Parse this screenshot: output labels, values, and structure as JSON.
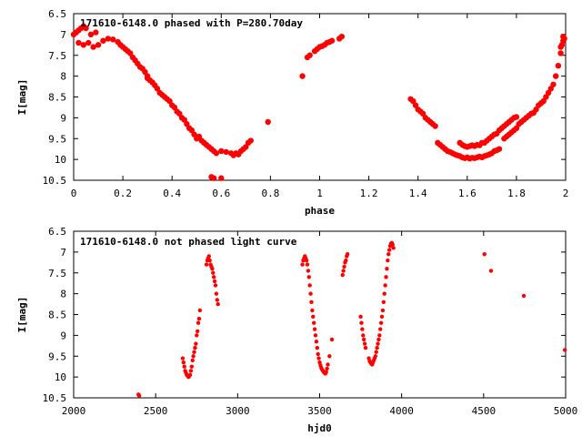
{
  "chart_data": [
    {
      "type": "scatter",
      "title": "171610-6148.0 phased with P=280.70day",
      "xlabel": "phase",
      "ylabel": "I[mag]",
      "xlim": [
        0,
        2
      ],
      "ylim": [
        6.5,
        10.5
      ],
      "y_inverted": true,
      "grid": false,
      "xticks": [
        "0",
        "0.2",
        "0.4",
        "0.6",
        "0.8",
        "1",
        "1.2",
        "1.4",
        "1.6",
        "1.8",
        "2"
      ],
      "yticks": [
        "6.5",
        "7",
        "7.5",
        "8",
        "8.5",
        "9",
        "9.5",
        "10",
        "10.5"
      ],
      "marker_color": "#ff0000",
      "points": [
        [
          0.0,
          7.0
        ],
        [
          0.01,
          6.95
        ],
        [
          0.02,
          6.9
        ],
        [
          0.03,
          6.85
        ],
        [
          0.04,
          6.8
        ],
        [
          0.05,
          6.85
        ],
        [
          0.02,
          7.2
        ],
        [
          0.04,
          7.25
        ],
        [
          0.06,
          7.2
        ],
        [
          0.08,
          7.3
        ],
        [
          0.07,
          7.0
        ],
        [
          0.09,
          6.95
        ],
        [
          0.1,
          7.25
        ],
        [
          0.12,
          7.15
        ],
        [
          0.14,
          7.1
        ],
        [
          0.16,
          7.12
        ],
        [
          0.18,
          7.18
        ],
        [
          0.19,
          7.25
        ],
        [
          0.2,
          7.3
        ],
        [
          0.21,
          7.35
        ],
        [
          0.22,
          7.4
        ],
        [
          0.23,
          7.45
        ],
        [
          0.24,
          7.55
        ],
        [
          0.25,
          7.62
        ],
        [
          0.26,
          7.7
        ],
        [
          0.27,
          7.78
        ],
        [
          0.28,
          7.82
        ],
        [
          0.29,
          7.9
        ],
        [
          0.3,
          8.0
        ],
        [
          0.3,
          8.05
        ],
        [
          0.31,
          8.1
        ],
        [
          0.32,
          8.15
        ],
        [
          0.33,
          8.22
        ],
        [
          0.34,
          8.3
        ],
        [
          0.35,
          8.4
        ],
        [
          0.36,
          8.45
        ],
        [
          0.37,
          8.5
        ],
        [
          0.38,
          8.55
        ],
        [
          0.39,
          8.6
        ],
        [
          0.4,
          8.7
        ],
        [
          0.41,
          8.75
        ],
        [
          0.42,
          8.85
        ],
        [
          0.43,
          8.9
        ],
        [
          0.44,
          9.0
        ],
        [
          0.45,
          9.05
        ],
        [
          0.46,
          9.15
        ],
        [
          0.47,
          9.25
        ],
        [
          0.48,
          9.3
        ],
        [
          0.49,
          9.4
        ],
        [
          0.5,
          9.5
        ],
        [
          0.51,
          9.45
        ],
        [
          0.52,
          9.55
        ],
        [
          0.53,
          9.6
        ],
        [
          0.54,
          9.65
        ],
        [
          0.55,
          9.7
        ],
        [
          0.56,
          9.75
        ],
        [
          0.57,
          9.8
        ],
        [
          0.58,
          9.85
        ],
        [
          0.56,
          10.42
        ],
        [
          0.57,
          10.45
        ],
        [
          0.6,
          10.45
        ],
        [
          0.6,
          9.8
        ],
        [
          0.62,
          9.82
        ],
        [
          0.64,
          9.85
        ],
        [
          0.65,
          9.9
        ],
        [
          0.66,
          9.85
        ],
        [
          0.67,
          9.88
        ],
        [
          0.68,
          9.8
        ],
        [
          0.69,
          9.75
        ],
        [
          0.7,
          9.7
        ],
        [
          0.71,
          9.6
        ],
        [
          0.72,
          9.55
        ],
        [
          0.79,
          9.1
        ],
        [
          0.93,
          8.0
        ],
        [
          0.95,
          7.55
        ],
        [
          0.96,
          7.5
        ],
        [
          0.98,
          7.4
        ],
        [
          0.99,
          7.35
        ],
        [
          1.0,
          7.3
        ],
        [
          1.01,
          7.28
        ],
        [
          1.02,
          7.25
        ],
        [
          1.03,
          7.2
        ],
        [
          1.04,
          7.18
        ],
        [
          1.05,
          7.15
        ],
        [
          1.08,
          7.1
        ],
        [
          1.09,
          7.05
        ],
        [
          1.37,
          8.55
        ],
        [
          1.38,
          8.6
        ],
        [
          1.39,
          8.7
        ],
        [
          1.4,
          8.8
        ],
        [
          1.41,
          8.85
        ],
        [
          1.42,
          8.9
        ],
        [
          1.43,
          9.0
        ],
        [
          1.44,
          9.05
        ],
        [
          1.45,
          9.1
        ],
        [
          1.46,
          9.15
        ],
        [
          1.47,
          9.2
        ],
        [
          1.48,
          9.6
        ],
        [
          1.49,
          9.65
        ],
        [
          1.5,
          9.7
        ],
        [
          1.51,
          9.75
        ],
        [
          1.52,
          9.8
        ],
        [
          1.53,
          9.82
        ],
        [
          1.54,
          9.85
        ],
        [
          1.55,
          9.88
        ],
        [
          1.56,
          9.9
        ],
        [
          1.57,
          9.92
        ],
        [
          1.58,
          9.95
        ],
        [
          1.59,
          9.97
        ],
        [
          1.6,
          9.95
        ],
        [
          1.61,
          9.98
        ],
        [
          1.62,
          9.96
        ],
        [
          1.63,
          9.97
        ],
        [
          1.64,
          9.95
        ],
        [
          1.65,
          9.93
        ],
        [
          1.66,
          9.95
        ],
        [
          1.67,
          9.92
        ],
        [
          1.68,
          9.9
        ],
        [
          1.69,
          9.88
        ],
        [
          1.7,
          9.85
        ],
        [
          1.71,
          9.8
        ],
        [
          1.72,
          9.78
        ],
        [
          1.73,
          9.75
        ],
        [
          1.57,
          9.6
        ],
        [
          1.58,
          9.65
        ],
        [
          1.59,
          9.68
        ],
        [
          1.6,
          9.7
        ],
        [
          1.61,
          9.68
        ],
        [
          1.62,
          9.66
        ],
        [
          1.63,
          9.68
        ],
        [
          1.64,
          9.65
        ],
        [
          1.65,
          9.66
        ],
        [
          1.66,
          9.6
        ],
        [
          1.67,
          9.6
        ],
        [
          1.68,
          9.55
        ],
        [
          1.69,
          9.5
        ],
        [
          1.7,
          9.45
        ],
        [
          1.71,
          9.4
        ],
        [
          1.72,
          9.38
        ],
        [
          1.73,
          9.3
        ],
        [
          1.74,
          9.25
        ],
        [
          1.75,
          9.2
        ],
        [
          1.76,
          9.15
        ],
        [
          1.77,
          9.1
        ],
        [
          1.78,
          9.05
        ],
        [
          1.79,
          9.0
        ],
        [
          1.8,
          8.98
        ],
        [
          1.75,
          9.5
        ],
        [
          1.76,
          9.45
        ],
        [
          1.77,
          9.4
        ],
        [
          1.78,
          9.35
        ],
        [
          1.79,
          9.3
        ],
        [
          1.8,
          9.25
        ],
        [
          1.81,
          9.15
        ],
        [
          1.82,
          9.1
        ],
        [
          1.83,
          9.05
        ],
        [
          1.84,
          9.0
        ],
        [
          1.85,
          8.95
        ],
        [
          1.86,
          8.9
        ],
        [
          1.87,
          8.88
        ],
        [
          1.88,
          8.8
        ],
        [
          1.89,
          8.7
        ],
        [
          1.9,
          8.65
        ],
        [
          1.91,
          8.6
        ],
        [
          1.92,
          8.5
        ],
        [
          1.93,
          8.4
        ],
        [
          1.94,
          8.3
        ],
        [
          1.95,
          8.2
        ],
        [
          1.96,
          8.0
        ],
        [
          1.97,
          7.75
        ],
        [
          1.98,
          7.45
        ],
        [
          1.985,
          7.25
        ],
        [
          1.99,
          7.15
        ],
        [
          1.995,
          7.1
        ],
        [
          1.99,
          7.05
        ],
        [
          1.98,
          7.3
        ]
      ]
    },
    {
      "type": "scatter",
      "title": "171610-6148.0 not phased light curve",
      "xlabel": "hjd0",
      "ylabel": "I[mag]",
      "xlim": [
        2000,
        5000
      ],
      "ylim": [
        6.5,
        10.5
      ],
      "y_inverted": true,
      "grid": false,
      "xticks": [
        "2000",
        "2500",
        "3000",
        "3500",
        "4000",
        "4500",
        "5000"
      ],
      "yticks": [
        "6.5",
        "7",
        "7.5",
        "8",
        "8.5",
        "9",
        "9.5",
        "10",
        "10.5"
      ],
      "marker_color": "#ff0000",
      "points": [
        [
          2395,
          10.42
        ],
        [
          2400,
          10.45
        ],
        [
          2665,
          9.55
        ],
        [
          2670,
          9.65
        ],
        [
          2675,
          9.75
        ],
        [
          2680,
          9.85
        ],
        [
          2685,
          9.9
        ],
        [
          2690,
          9.95
        ],
        [
          2695,
          9.97
        ],
        [
          2700,
          10.0
        ],
        [
          2705,
          9.98
        ],
        [
          2710,
          9.95
        ],
        [
          2715,
          9.85
        ],
        [
          2720,
          9.75
        ],
        [
          2725,
          9.6
        ],
        [
          2730,
          9.5
        ],
        [
          2735,
          9.4
        ],
        [
          2740,
          9.3
        ],
        [
          2745,
          9.2
        ],
        [
          2750,
          9.0
        ],
        [
          2755,
          8.9
        ],
        [
          2760,
          8.7
        ],
        [
          2765,
          8.6
        ],
        [
          2770,
          8.4
        ],
        [
          2810,
          7.3
        ],
        [
          2815,
          7.2
        ],
        [
          2820,
          7.15
        ],
        [
          2825,
          7.1
        ],
        [
          2830,
          7.2
        ],
        [
          2835,
          7.3
        ],
        [
          2840,
          7.35
        ],
        [
          2845,
          7.4
        ],
        [
          2850,
          7.5
        ],
        [
          2855,
          7.6
        ],
        [
          2860,
          7.7
        ],
        [
          2865,
          7.8
        ],
        [
          2870,
          8.0
        ],
        [
          2875,
          8.15
        ],
        [
          2880,
          8.25
        ],
        [
          3395,
          7.3
        ],
        [
          3400,
          7.2
        ],
        [
          3405,
          7.15
        ],
        [
          3410,
          7.1
        ],
        [
          3415,
          7.15
        ],
        [
          3420,
          7.2
        ],
        [
          3425,
          7.3
        ],
        [
          3430,
          7.45
        ],
        [
          3435,
          7.6
        ],
        [
          3440,
          7.8
        ],
        [
          3445,
          8.0
        ],
        [
          3450,
          8.2
        ],
        [
          3455,
          8.4
        ],
        [
          3460,
          8.55
        ],
        [
          3465,
          8.7
        ],
        [
          3470,
          8.85
        ],
        [
          3475,
          9.0
        ],
        [
          3480,
          9.15
        ],
        [
          3485,
          9.3
        ],
        [
          3490,
          9.45
        ],
        [
          3495,
          9.55
        ],
        [
          3500,
          9.65
        ],
        [
          3505,
          9.72
        ],
        [
          3510,
          9.78
        ],
        [
          3515,
          9.82
        ],
        [
          3520,
          9.85
        ],
        [
          3525,
          9.88
        ],
        [
          3530,
          9.9
        ],
        [
          3535,
          9.92
        ],
        [
          3540,
          9.88
        ],
        [
          3545,
          9.8
        ],
        [
          3550,
          9.7
        ],
        [
          3560,
          9.5
        ],
        [
          3575,
          9.1
        ],
        [
          3640,
          7.55
        ],
        [
          3645,
          7.45
        ],
        [
          3650,
          7.35
        ],
        [
          3655,
          7.25
        ],
        [
          3660,
          7.2
        ],
        [
          3665,
          7.1
        ],
        [
          3670,
          7.05
        ],
        [
          3750,
          8.55
        ],
        [
          3755,
          8.7
        ],
        [
          3760,
          8.85
        ],
        [
          3765,
          9.0
        ],
        [
          3770,
          9.1
        ],
        [
          3775,
          9.2
        ],
        [
          3780,
          9.3
        ],
        [
          3800,
          9.55
        ],
        [
          3805,
          9.62
        ],
        [
          3810,
          9.65
        ],
        [
          3815,
          9.68
        ],
        [
          3820,
          9.7
        ],
        [
          3825,
          9.65
        ],
        [
          3830,
          9.6
        ],
        [
          3835,
          9.55
        ],
        [
          3840,
          9.5
        ],
        [
          3845,
          9.4
        ],
        [
          3850,
          9.3
        ],
        [
          3855,
          9.2
        ],
        [
          3860,
          9.1
        ],
        [
          3865,
          9.0
        ],
        [
          3870,
          8.85
        ],
        [
          3875,
          8.7
        ],
        [
          3880,
          8.55
        ],
        [
          3885,
          8.4
        ],
        [
          3890,
          8.2
        ],
        [
          3895,
          8.0
        ],
        [
          3900,
          7.8
        ],
        [
          3905,
          7.6
        ],
        [
          3910,
          7.4
        ],
        [
          3915,
          7.2
        ],
        [
          3920,
          7.05
        ],
        [
          3925,
          6.95
        ],
        [
          3930,
          6.85
        ],
        [
          3935,
          6.8
        ],
        [
          3940,
          6.78
        ],
        [
          3945,
          6.82
        ],
        [
          3950,
          6.9
        ],
        [
          4505,
          7.05
        ],
        [
          4545,
          7.45
        ],
        [
          4745,
          8.05
        ],
        [
          4995,
          9.35
        ]
      ]
    }
  ]
}
